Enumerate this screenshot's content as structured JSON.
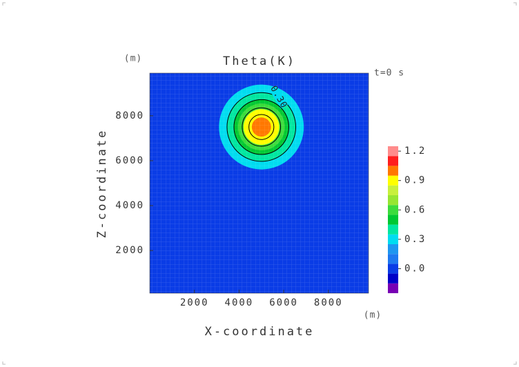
{
  "chart_data": {
    "type": "contour",
    "title": "Theta(K)",
    "subtitle": "t=0 s",
    "x_label": "X-coordinate",
    "y_label": "Z-coordinate",
    "x_unit": "(m)",
    "y_unit": "(m)",
    "xlim": [
      0,
      9800
    ],
    "ylim": [
      100,
      9900
    ],
    "xticks": [
      2000,
      4000,
      6000,
      8000
    ],
    "yticks": [
      2000,
      4000,
      6000,
      8000
    ],
    "background_value": 0.0,
    "center": {
      "x": 5000,
      "y": 7500
    },
    "filled_contours": [
      {
        "value": 0.3,
        "r": 1900
      },
      {
        "value": 0.4,
        "r": 1540
      },
      {
        "value": 0.5,
        "r": 1230
      },
      {
        "value": 0.6,
        "r": 1050
      },
      {
        "value": 0.9,
        "r": 800
      },
      {
        "value": 1.0,
        "r": 430
      }
    ],
    "contour_lines": [
      {
        "level": 0.3,
        "r": 1540,
        "label": "0.30"
      },
      {
        "level": 0.5,
        "r": 1230
      },
      {
        "level": 0.7,
        "r": 860
      },
      {
        "level": 0.9,
        "r": 560
      }
    ],
    "colorbar": {
      "levels": [
        -0.25,
        -0.15,
        -0.05,
        0.05,
        0.15,
        0.25,
        0.35,
        0.45,
        0.55,
        0.65,
        0.75,
        0.85,
        0.95,
        1.05,
        1.15,
        1.25
      ],
      "colors": [
        "#7800b4",
        "#0000c8",
        "#0a3ce6",
        "#1e78f0",
        "#1e96f0",
        "#00dcf0",
        "#00e6a0",
        "#00c832",
        "#3cdc3c",
        "#96e632",
        "#c8f03c",
        "#ffff00",
        "#ff7800",
        "#ff1e1e",
        "#ff8c8c"
      ],
      "ticks": [
        {
          "value": 0,
          "label": "0.0"
        },
        0.3,
        0.6,
        0.9,
        1.2
      ]
    }
  }
}
